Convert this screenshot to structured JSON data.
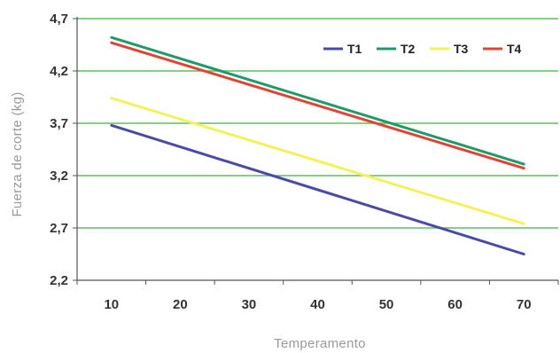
{
  "chart_data": {
    "type": "line",
    "title": "",
    "xlabel": "Temperamento",
    "ylabel": "Fuerza de corte (kg)",
    "x_ticks": [
      10,
      20,
      30,
      40,
      50,
      60,
      70
    ],
    "y_ticks": [
      "2,2",
      "2,7",
      "3,2",
      "3,7",
      "4,2",
      "4,7"
    ],
    "xlim": [
      5,
      75
    ],
    "ylim": [
      2.2,
      4.7
    ],
    "grid": "horizontal",
    "legend_position": "top-right",
    "series": [
      {
        "name": "T1",
        "color": "#4a4aa8",
        "x": [
          10,
          70
        ],
        "y": [
          3.68,
          2.45
        ]
      },
      {
        "name": "T2",
        "color": "#1f9b6a",
        "x": [
          10,
          70
        ],
        "y": [
          4.52,
          3.31
        ]
      },
      {
        "name": "T3",
        "color": "#f2f25a",
        "x": [
          10,
          70
        ],
        "y": [
          3.94,
          2.74
        ]
      },
      {
        "name": "T4",
        "color": "#e04434",
        "x": [
          10,
          70
        ],
        "y": [
          4.47,
          3.27
        ]
      }
    ],
    "colors": {
      "gridline": "#5cc25c",
      "axis": "#555555"
    }
  }
}
